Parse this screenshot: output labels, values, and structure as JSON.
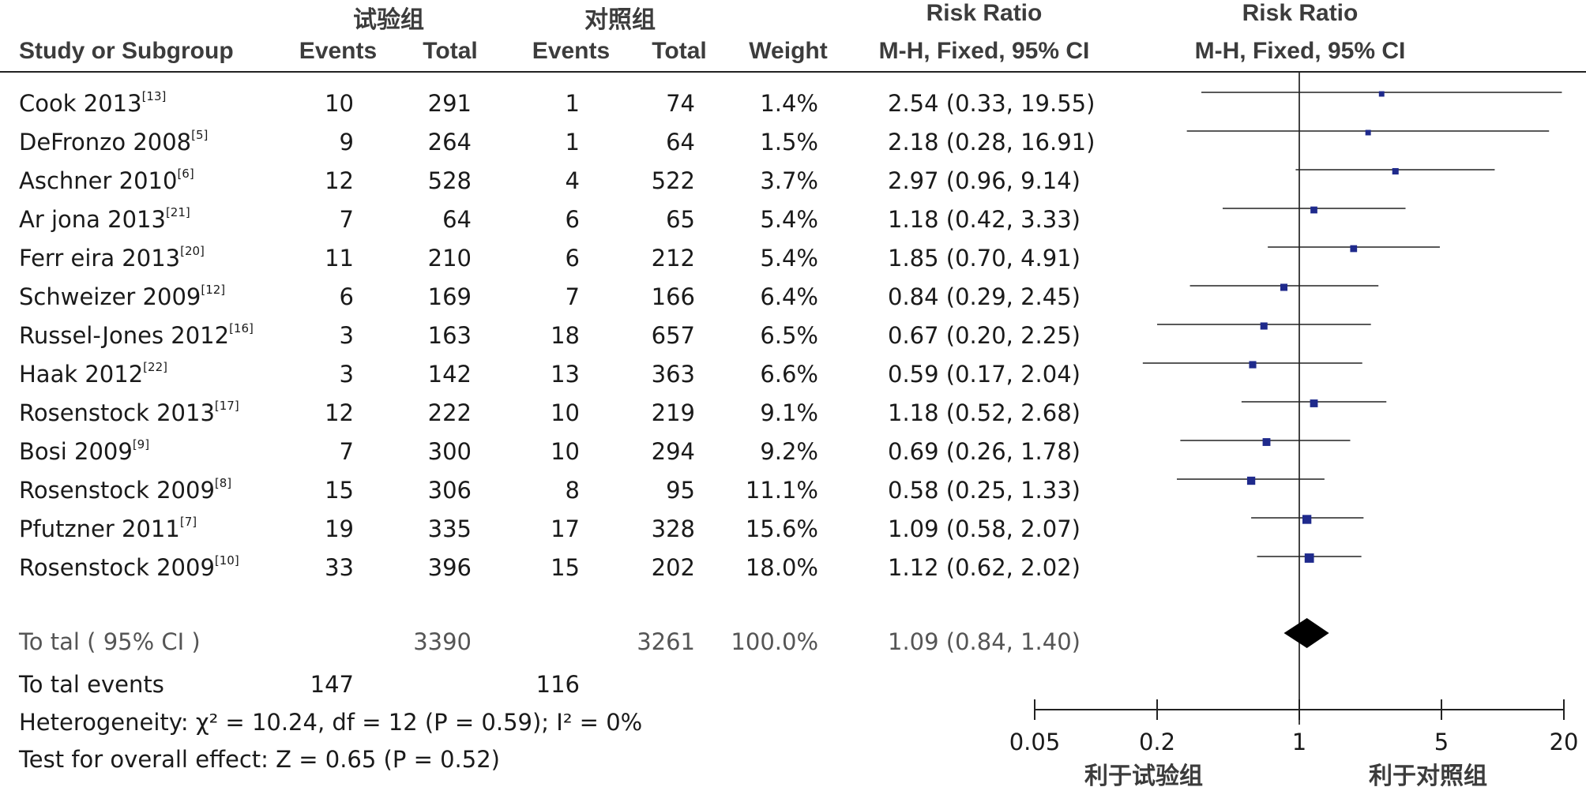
{
  "header": {
    "group_test": "试验组",
    "group_control": "对照组",
    "study_col": "Study or Subgroup",
    "events_col": "Events",
    "total_col": "Total",
    "weight_col": "Weight",
    "rr_title": "Risk Ratio",
    "rr_method": "M-H, Fixed, 95% CI",
    "plot_title": "Risk Ratio",
    "plot_method": "M-H, Fixed, 95% CI"
  },
  "studies": [
    {
      "name": "Cook 2013",
      "ref": "[13]",
      "e1": "10",
      "n1": "291",
      "e2": "1",
      "n2": "74",
      "weight": "1.4%",
      "rr_text": "2.54 (0.33, 19.55)"
    },
    {
      "name": "DeFronzo 2008",
      "ref": "[5]",
      "e1": "9",
      "n1": "264",
      "e2": "1",
      "n2": "64",
      "weight": "1.5%",
      "rr_text": "2.18 (0.28, 16.91)"
    },
    {
      "name": "Aschner 2010",
      "ref": "[6]",
      "e1": "12",
      "n1": "528",
      "e2": "4",
      "n2": "522",
      "weight": "3.7%",
      "rr_text": "2.97 (0.96, 9.14)"
    },
    {
      "name": "Ar jona 2013",
      "ref": "[21]",
      "e1": "7",
      "n1": "64",
      "e2": "6",
      "n2": "65",
      "weight": "5.4%",
      "rr_text": "1.18 (0.42, 3.33)"
    },
    {
      "name": "Ferr eira 2013",
      "ref": "[20]",
      "e1": "11",
      "n1": "210",
      "e2": "6",
      "n2": "212",
      "weight": "5.4%",
      "rr_text": "1.85 (0.70, 4.91)"
    },
    {
      "name": "Schweizer 2009",
      "ref": "[12]",
      "e1": "6",
      "n1": "169",
      "e2": "7",
      "n2": "166",
      "weight": "6.4%",
      "rr_text": "0.84 (0.29, 2.45)"
    },
    {
      "name": "Russel-Jones 2012",
      "ref": "[16]",
      "e1": "3",
      "n1": "163",
      "e2": "18",
      "n2": "657",
      "weight": "6.5%",
      "rr_text": "0.67 (0.20, 2.25)"
    },
    {
      "name": "Haak 2012",
      "ref": "[22]",
      "e1": "3",
      "n1": "142",
      "e2": "13",
      "n2": "363",
      "weight": "6.6%",
      "rr_text": "0.59 (0.17, 2.04)"
    },
    {
      "name": "Rosenstock 2013",
      "ref": "[17]",
      "e1": "12",
      "n1": "222",
      "e2": "10",
      "n2": "219",
      "weight": "9.1%",
      "rr_text": "1.18 (0.52, 2.68)"
    },
    {
      "name": "Bosi 2009",
      "ref": "[9]",
      "e1": "7",
      "n1": "300",
      "e2": "10",
      "n2": "294",
      "weight": "9.2%",
      "rr_text": "0.69 (0.26, 1.78)"
    },
    {
      "name": "Rosenstock 2009",
      "ref": "[8]",
      "e1": "15",
      "n1": "306",
      "e2": "8",
      "n2": "95",
      "weight": "11.1%",
      "rr_text": "0.58 (0.25, 1.33)"
    },
    {
      "name": "Pfutzner 2011",
      "ref": "[7]",
      "e1": "19",
      "n1": "335",
      "e2": "17",
      "n2": "328",
      "weight": "15.6%",
      "rr_text": "1.09 (0.58, 2.07)"
    },
    {
      "name": "Rosenstock 2009",
      "ref": "[10]",
      "e1": "33",
      "n1": "396",
      "e2": "15",
      "n2": "202",
      "weight": "18.0%",
      "rr_text": "1.12 (0.62, 2.02)"
    }
  ],
  "total": {
    "label": "To tal ( 95% CI )",
    "n1": "3390",
    "n2": "3261",
    "weight": "100.0%",
    "rr_text": "1.09 (0.84, 1.40)"
  },
  "total_events": {
    "label": "To tal events",
    "e1": "147",
    "e2": "116"
  },
  "heterogeneity": "Heterogeneity: χ² = 10.24, df = 12 (P = 0.59); I² = 0%",
  "overall_effect": "Test for overall effect: Z = 0.65 (P = 0.52)",
  "axis": {
    "ticks": [
      0.05,
      0.2,
      1,
      5,
      20
    ],
    "tick_labels": [
      "0.05",
      "0.2",
      "1",
      "5",
      "20"
    ],
    "favours_test": "利于试验组",
    "favours_control": "利于对照组"
  },
  "colors": {
    "marker": "#1f2a8c",
    "text": "#1a1a1a",
    "header": "#3c3c3c"
  },
  "chart_data": {
    "type": "scatter",
    "scale": "log",
    "xlim": [
      0.05,
      20
    ],
    "reference_line": 1,
    "estimates": [
      {
        "study": "Cook 2013",
        "rr": 2.54,
        "lower": 0.33,
        "upper": 19.55,
        "weight": 1.4
      },
      {
        "study": "DeFronzo 2008",
        "rr": 2.18,
        "lower": 0.28,
        "upper": 16.91,
        "weight": 1.5
      },
      {
        "study": "Aschner 2010",
        "rr": 2.97,
        "lower": 0.96,
        "upper": 9.14,
        "weight": 3.7
      },
      {
        "study": "Ar jona 2013",
        "rr": 1.18,
        "lower": 0.42,
        "upper": 3.33,
        "weight": 5.4
      },
      {
        "study": "Ferr eira 2013",
        "rr": 1.85,
        "lower": 0.7,
        "upper": 4.91,
        "weight": 5.4
      },
      {
        "study": "Schweizer 2009",
        "rr": 0.84,
        "lower": 0.29,
        "upper": 2.45,
        "weight": 6.4
      },
      {
        "study": "Russel-Jones 2012",
        "rr": 0.67,
        "lower": 0.2,
        "upper": 2.25,
        "weight": 6.5
      },
      {
        "study": "Haak 2012",
        "rr": 0.59,
        "lower": 0.17,
        "upper": 2.04,
        "weight": 6.6
      },
      {
        "study": "Rosenstock 2013",
        "rr": 1.18,
        "lower": 0.52,
        "upper": 2.68,
        "weight": 9.1
      },
      {
        "study": "Bosi 2009",
        "rr": 0.69,
        "lower": 0.26,
        "upper": 1.78,
        "weight": 9.2
      },
      {
        "study": "Rosenstock 2009",
        "rr": 0.58,
        "lower": 0.25,
        "upper": 1.33,
        "weight": 11.1
      },
      {
        "study": "Pfutzner 2011",
        "rr": 1.09,
        "lower": 0.58,
        "upper": 2.07,
        "weight": 15.6
      },
      {
        "study": "Rosenstock 2009",
        "rr": 1.12,
        "lower": 0.62,
        "upper": 2.02,
        "weight": 18.0
      }
    ],
    "pooled": {
      "rr": 1.09,
      "lower": 0.84,
      "upper": 1.4
    }
  }
}
